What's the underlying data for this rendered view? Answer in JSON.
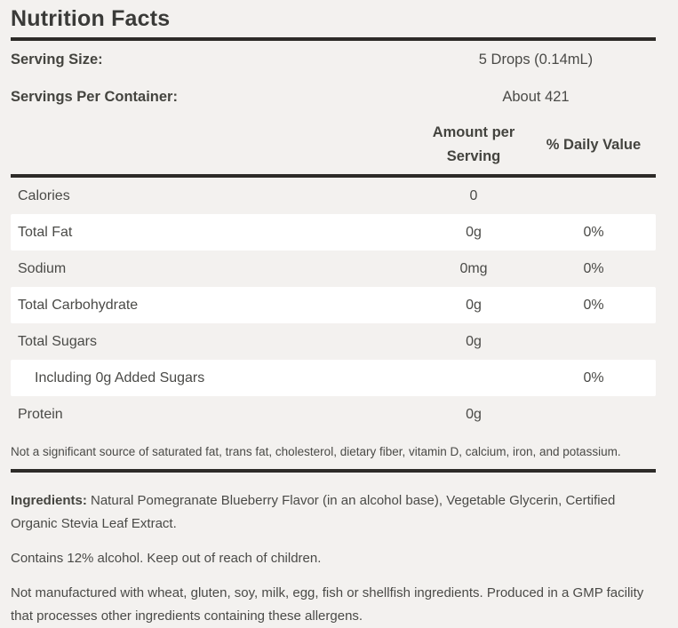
{
  "label": {
    "title": "Nutrition Facts",
    "serving_rows": [
      {
        "name": "Serving Size:",
        "value": "5 Drops (0.14mL)"
      },
      {
        "name": "Servings Per Container:",
        "value": "About 421"
      }
    ],
    "columns": {
      "amount": "Amount per Serving",
      "daily_value": "% Daily Value"
    },
    "rows": [
      {
        "name": "Calories",
        "amount": "0",
        "dv": ""
      },
      {
        "name": "Total Fat",
        "amount": "0g",
        "dv": "0%"
      },
      {
        "name": "Sodium",
        "amount": "0mg",
        "dv": "0%"
      },
      {
        "name": "Total Carbohydrate",
        "amount": "0g",
        "dv": "0%"
      },
      {
        "name": "Total Sugars",
        "amount": "0g",
        "dv": ""
      },
      {
        "name": "Including 0g Added Sugars",
        "amount": "",
        "dv": "0%"
      },
      {
        "name": "Protein",
        "amount": "0g",
        "dv": ""
      }
    ],
    "footnote": "Not a significant source of saturated fat, trans fat, cholesterol, dietary fiber, vitamin D, calcium, iron, and potassium.",
    "ingredients_label": "Ingredients:",
    "ingredients_text": " Natural Pomegranate Blueberry Flavor (in an alcohol base), Vegetable Glycerin, Certified Organic Stevia Leaf Extract.",
    "contains_text": "Contains 12% alcohol. Keep out of reach of children.",
    "allergen_text": "Not manufactured with wheat, gluten, soy, milk, egg, fish or shellfish ingredients. Produced in a GMP facility that processes other ingredients containing these allergens.",
    "colors": {
      "background": "#f3f1ef",
      "row_highlight": "#ffffff",
      "rule": "#2d2b28",
      "text": "#4a4a47"
    }
  }
}
